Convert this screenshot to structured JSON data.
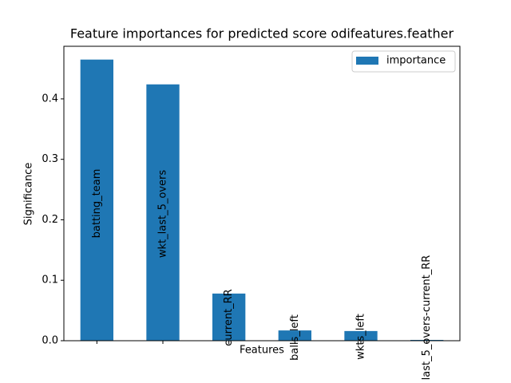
{
  "chart_data": {
    "type": "bar",
    "title": "Feature importances for predicted score odifeatures.feather",
    "x_label": "Features",
    "y_label": "Significance",
    "categories": [
      "batting_team",
      "wkt_last_5_overs",
      "current_RR",
      "balls_left",
      "wkts_left",
      "last_5_overs-current_RR"
    ],
    "series": [
      {
        "name": "importance",
        "color": "#1f77b4",
        "values": [
          0.465,
          0.424,
          0.078,
          0.017,
          0.016,
          0.0013
        ]
      }
    ],
    "ylim": [
      0,
      0.487
    ],
    "yticks": [
      0.0,
      0.1,
      0.2,
      0.3,
      0.4
    ],
    "legend": "upper right"
  }
}
